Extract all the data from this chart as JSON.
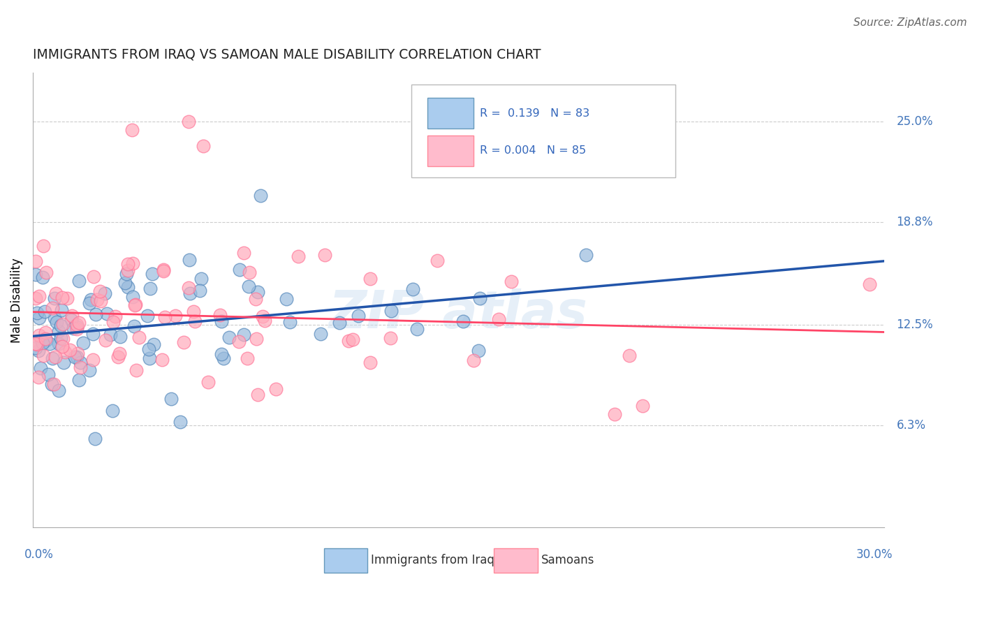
{
  "title": "IMMIGRANTS FROM IRAQ VS SAMOAN MALE DISABILITY CORRELATION CHART",
  "source": "Source: ZipAtlas.com",
  "ylabel": "Male Disability",
  "ylabel_ticks": [
    6.3,
    12.5,
    18.8,
    25.0
  ],
  "xlim": [
    0.0,
    30.0
  ],
  "ylim": [
    0.0,
    28.0
  ],
  "series1_color": "#99bbdd",
  "series2_color": "#ffaabb",
  "series1_edge": "#5588bb",
  "series2_edge": "#ff7799",
  "series1_label": "Immigrants from Iraq",
  "series2_label": "Samoans",
  "series1_R": 0.139,
  "series1_N": 83,
  "series2_R": 0.004,
  "series2_N": 85,
  "trend1_color": "#2255aa",
  "trend2_color": "#ff4466",
  "axis_label_color": "#4477bb",
  "grid_color": "#cccccc",
  "watermark_color": "#c8ddf0",
  "legend_swatch1": "#aaccee",
  "legend_swatch1_edge": "#6699bb",
  "legend_swatch2": "#ffbbcc",
  "legend_swatch2_edge": "#ff8899"
}
